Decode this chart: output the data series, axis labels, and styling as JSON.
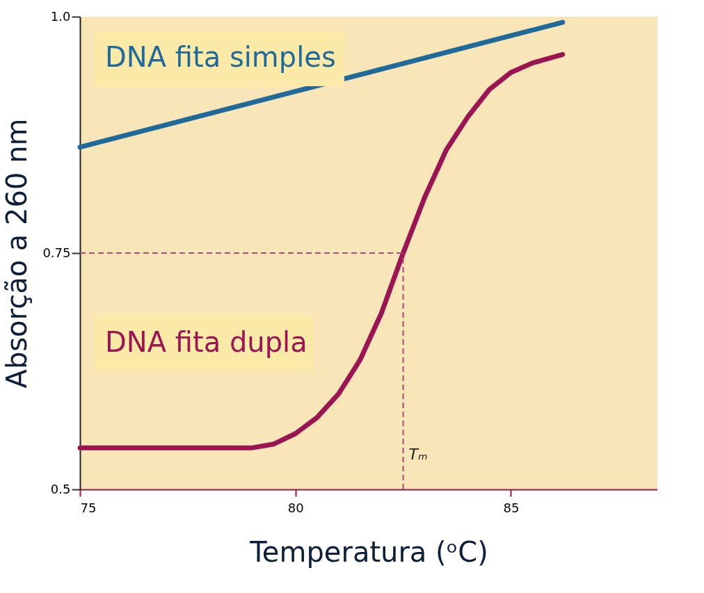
{
  "chart_data": {
    "type": "line",
    "xlabel": "Temperatura (ᵒC)",
    "ylabel": "Absorção a 260 nm",
    "xlim": [
      75,
      88.4
    ],
    "ylim": [
      0.5,
      1.0
    ],
    "xticks": [
      75,
      80,
      85
    ],
    "yticks": [
      0.5,
      0.75,
      {
        "value": 1.0,
        "label": "1.0"
      }
    ],
    "grid": false,
    "line_style": "solid",
    "marker": "none",
    "series": [
      {
        "name": "DNA fita simples",
        "color": "#1f6a9a",
        "x": [
          75,
          86.2
        ],
        "values": [
          0.862,
          0.994
        ]
      },
      {
        "name": "DNA fita dupla",
        "color": "#9b1553",
        "x": [
          75,
          79,
          79.5,
          80,
          80.5,
          81,
          81.5,
          82,
          82.5,
          83,
          83.5,
          84,
          84.5,
          85,
          85.5,
          86.2
        ],
        "values": [
          0.544,
          0.544,
          0.548,
          0.559,
          0.576,
          0.601,
          0.637,
          0.687,
          0.75,
          0.809,
          0.859,
          0.894,
          0.923,
          0.941,
          0.951,
          0.96
        ]
      }
    ],
    "ref_lines": [
      {
        "axis": "y",
        "value": 0.75,
        "color": "#b04a73",
        "line_style": "dashed"
      },
      {
        "axis": "x",
        "value": 82.5,
        "label": "Tₘ",
        "color": "#b04a73",
        "line_style": "dashed"
      }
    ]
  }
}
